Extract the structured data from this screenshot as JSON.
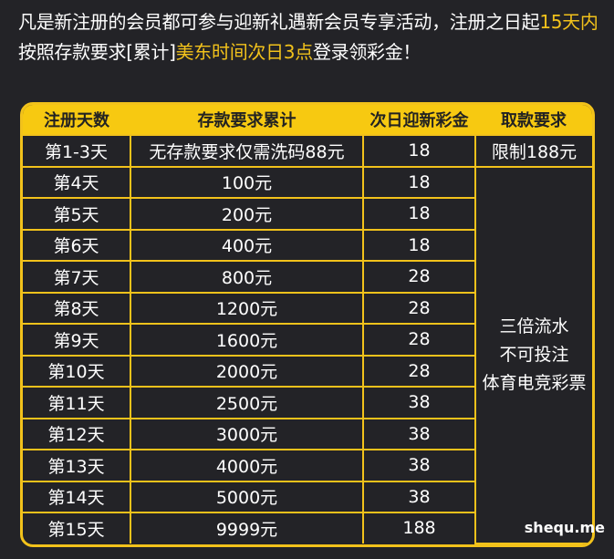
{
  "intro": {
    "part1": "凡是新注册的会员都可参与迎新礼遇新会员专享活动，注册之日起",
    "highlight1": "15天内",
    "part2": "按照存款要求[累计]",
    "highlight2": "美东时间次日3点",
    "part3": "登录领彩金！"
  },
  "colors": {
    "accent": "#f2c21b",
    "background": "#232327"
  },
  "table": {
    "headers": [
      "注册天数",
      "存款要求累计",
      "次日迎新彩金",
      "取款要求"
    ],
    "rows": [
      {
        "day": "第1-3天",
        "deposit": "无存款要求仅需洗码88元",
        "bonus": "18",
        "withdraw": "限制188元"
      },
      {
        "day": "第4天",
        "deposit": "100元",
        "bonus": "18"
      },
      {
        "day": "第5天",
        "deposit": "200元",
        "bonus": "18"
      },
      {
        "day": "第6天",
        "deposit": "400元",
        "bonus": "18"
      },
      {
        "day": "第7天",
        "deposit": "800元",
        "bonus": "28"
      },
      {
        "day": "第8天",
        "deposit": "1200元",
        "bonus": "28"
      },
      {
        "day": "第9天",
        "deposit": "1600元",
        "bonus": "28"
      },
      {
        "day": "第10天",
        "deposit": "2000元",
        "bonus": "28"
      },
      {
        "day": "第11天",
        "deposit": "2500元",
        "bonus": "38"
      },
      {
        "day": "第12天",
        "deposit": "3000元",
        "bonus": "38"
      },
      {
        "day": "第13天",
        "deposit": "4000元",
        "bonus": "38"
      },
      {
        "day": "第14天",
        "deposit": "5000元",
        "bonus": "38"
      },
      {
        "day": "第15天",
        "deposit": "9999元",
        "bonus": "188"
      }
    ],
    "merged_note": [
      "三倍流水",
      "不可投注",
      "体育电竞彩票"
    ]
  },
  "watermark": "shequ.me"
}
